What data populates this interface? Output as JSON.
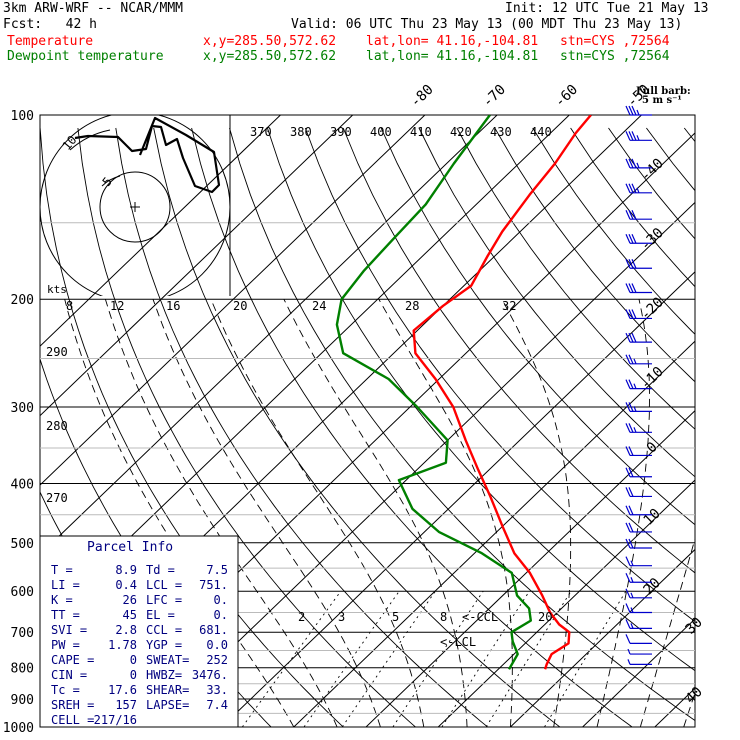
{
  "header": {
    "model": "3km ARW-WRF -- NCAR/MMM",
    "init": "Init: 12 UTC Tue 21 May 13",
    "fcst": "Fcst:   42 h",
    "valid": "Valid: 06 UTC Thu 23 May 13 (00 MDT Thu 23 May 13)",
    "temp_line": {
      "name": "Temperature",
      "xy": "x,y=285.50,572.62",
      "latlon": "lat,lon= 41.16,-104.81",
      "stn": "stn=CYS ,72564"
    },
    "dew_line": {
      "name": "Dewpoint temperature",
      "xy": "x,y=285.50,572.62",
      "latlon": "lat,lon= 41.16,-104.81",
      "stn": "stn=CYS ,72564"
    }
  },
  "colors": {
    "temperature": "#ff0000",
    "dewpoint": "#008000",
    "barbs": "#0000cc",
    "parcel_text": "#000080",
    "grid": "#000000",
    "grid_light": "#bbbbbb"
  },
  "parcel_info": {
    "title": "Parcel Info",
    "rows": [
      [
        "T  =",
        "8.9",
        "Td =",
        "7.5"
      ],
      [
        "LI =",
        "0.4",
        "LCL =",
        "751."
      ],
      [
        "K  =",
        "26",
        "LFC =",
        "0."
      ],
      [
        "TT =",
        "45",
        "EL  =",
        "0."
      ],
      [
        "SVI =",
        "2.8",
        "CCL =",
        "681."
      ],
      [
        "PW =",
        "1.78",
        "YGP =",
        "0.0"
      ],
      [
        "CAPE =",
        "0",
        "SWEAT=",
        "252"
      ],
      [
        "CIN =",
        "0",
        "HWBZ=",
        "3476."
      ],
      [
        "Tc =",
        "17.6",
        "SHEAR=",
        "33."
      ],
      [
        "SREH =",
        "157",
        "LAPSE=",
        "7.4"
      ],
      [
        "CELL =",
        "217/16",
        "",
        ""
      ]
    ]
  },
  "barb_legend": {
    "line1": "Full barb:",
    "line2": "5 m s⁻¹"
  },
  "chart_data": {
    "type": "line",
    "title": "",
    "xlabel": "",
    "ylabel": "",
    "pressure_ticks": [
      100,
      200,
      300,
      400,
      500,
      600,
      700,
      800,
      900,
      1000
    ],
    "temperature_ticks": [
      -80,
      -70,
      -60,
      -50,
      -40,
      -30,
      -20,
      -10,
      0,
      10,
      20,
      30,
      40
    ],
    "theta_labels": [
      290,
      280,
      270
    ],
    "theta_inset_labels": [
      370,
      380,
      390,
      400,
      410,
      420,
      430,
      440
    ],
    "hodograph_speed_labels": [
      8,
      12,
      16,
      20,
      24,
      28,
      32
    ],
    "hodograph_unit": "kts",
    "hodograph_ring_labels": [
      "5",
      "10"
    ],
    "mixing_ratio_labels": [
      2,
      3,
      5,
      8,
      20
    ],
    "annotations": [
      "<-LCL",
      "<-CCL"
    ],
    "series": [
      {
        "name": "Temperature",
        "color": "#ff0000",
        "points": [
          [
            805,
            16.5
          ],
          [
            790,
            16.0
          ],
          [
            760,
            15.2
          ],
          [
            730,
            16.0
          ],
          [
            700,
            14.5
          ],
          [
            680,
            12.0
          ],
          [
            650,
            9.0
          ],
          [
            610,
            5.5
          ],
          [
            560,
            0.5
          ],
          [
            520,
            -4.5
          ],
          [
            470,
            -10.0
          ],
          [
            420,
            -16.0
          ],
          [
            380,
            -21.5
          ],
          [
            340,
            -27.5
          ],
          [
            300,
            -34.0
          ],
          [
            270,
            -40.5
          ],
          [
            245,
            -47.0
          ],
          [
            225,
            -50.5
          ],
          [
            205,
            -50.0
          ],
          [
            190,
            -49.0
          ],
          [
            170,
            -51.0
          ],
          [
            155,
            -52.5
          ],
          [
            135,
            -54.0
          ],
          [
            120,
            -55.0
          ],
          [
            107,
            -56.5
          ],
          [
            100,
            -57.0
          ]
        ]
      },
      {
        "name": "Dewpoint temperature",
        "color": "#008000",
        "points": [
          [
            805,
            11.5
          ],
          [
            760,
            10.5
          ],
          [
            725,
            8.0
          ],
          [
            700,
            6.5
          ],
          [
            670,
            7.5
          ],
          [
            640,
            5.5
          ],
          [
            610,
            2.0
          ],
          [
            560,
            -2.0
          ],
          [
            520,
            -9.0
          ],
          [
            480,
            -18.0
          ],
          [
            440,
            -25.0
          ],
          [
            395,
            -31.0
          ],
          [
            370,
            -27.0
          ],
          [
            340,
            -30.0
          ],
          [
            300,
            -39.0
          ],
          [
            270,
            -47.0
          ],
          [
            245,
            -57.0
          ],
          [
            220,
            -62.0
          ],
          [
            200,
            -65.0
          ],
          [
            180,
            -66.0
          ],
          [
            160,
            -66.5
          ],
          [
            140,
            -67.0
          ],
          [
            120,
            -69.0
          ],
          [
            100,
            -71.0
          ]
        ]
      }
    ],
    "wind_profile": [
      [
        100,
        35
      ],
      [
        110,
        35
      ],
      [
        122,
        35
      ],
      [
        134,
        35
      ],
      [
        148,
        33
      ],
      [
        162,
        33
      ],
      [
        178,
        32
      ],
      [
        195,
        31
      ],
      [
        215,
        30
      ],
      [
        235,
        30
      ],
      [
        255,
        28
      ],
      [
        280,
        27
      ],
      [
        305,
        26
      ],
      [
        330,
        25
      ],
      [
        360,
        24
      ],
      [
        390,
        23
      ],
      [
        420,
        22
      ],
      [
        450,
        22
      ],
      [
        480,
        21
      ],
      [
        510,
        20
      ],
      [
        545,
        19
      ],
      [
        580,
        18
      ],
      [
        615,
        17
      ],
      [
        650,
        16
      ],
      [
        690,
        15
      ],
      [
        730,
        10
      ],
      [
        760,
        7
      ],
      [
        790,
        5
      ]
    ]
  }
}
